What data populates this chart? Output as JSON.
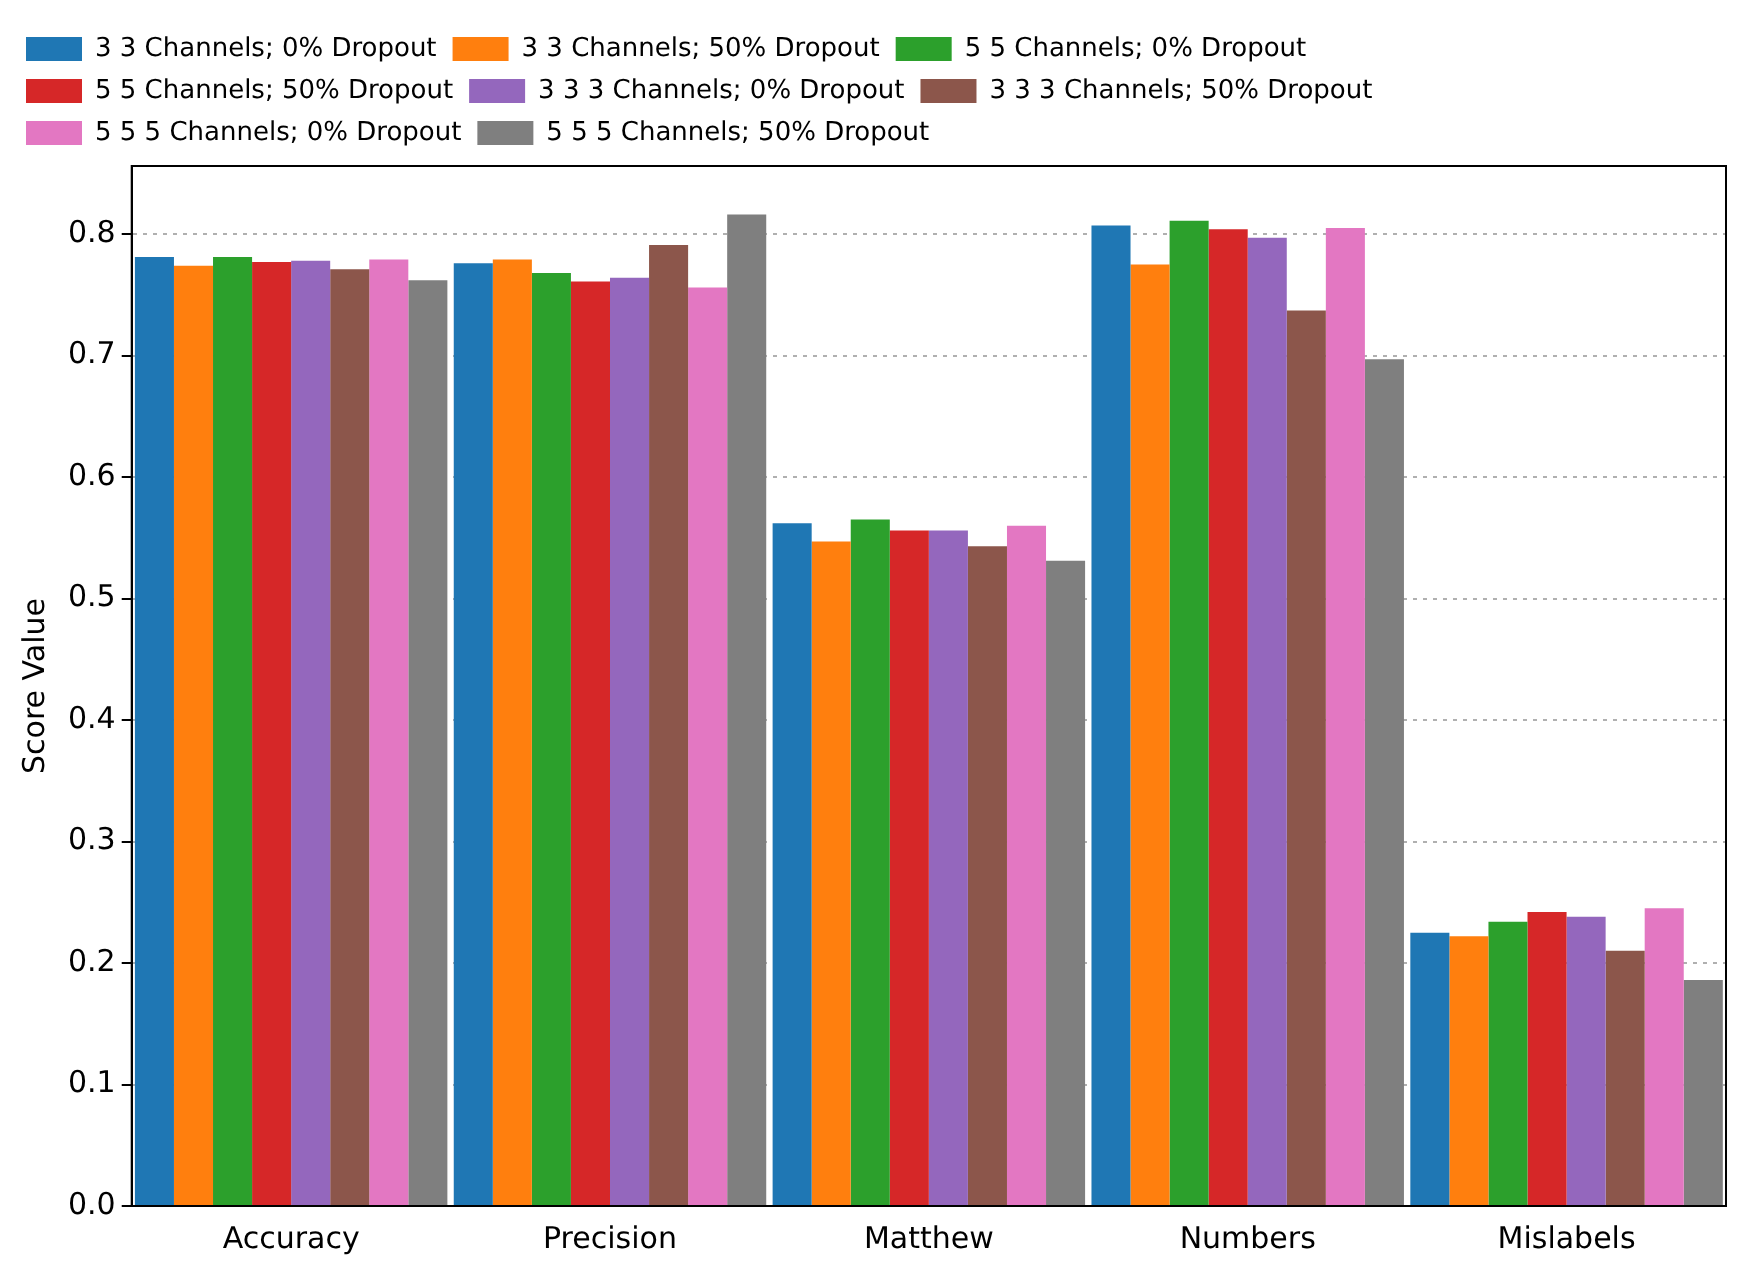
{
  "chart_data": {
    "type": "bar",
    "ylabel": "Score Value",
    "categories": [
      "Accuracy",
      "Precision",
      "Matthew",
      "Numbers",
      "Mislabels"
    ],
    "series": [
      {
        "name": "3 3 Channels; 0% Dropout",
        "color": "#1f77b4",
        "values": [
          0.781,
          0.776,
          0.562,
          0.807,
          0.225
        ]
      },
      {
        "name": "3 3 Channels; 50% Dropout",
        "color": "#ff7f0e",
        "values": [
          0.774,
          0.779,
          0.547,
          0.775,
          0.222
        ]
      },
      {
        "name": "5 5 Channels; 0% Dropout",
        "color": "#2ca02c",
        "values": [
          0.781,
          0.768,
          0.565,
          0.811,
          0.234
        ]
      },
      {
        "name": "5 5 Channels; 50% Dropout",
        "color": "#d62728",
        "values": [
          0.777,
          0.761,
          0.556,
          0.804,
          0.242
        ]
      },
      {
        "name": "3 3 3 Channels; 0% Dropout",
        "color": "#9467bd",
        "values": [
          0.778,
          0.764,
          0.556,
          0.797,
          0.238
        ]
      },
      {
        "name": "3 3 3 Channels; 50% Dropout",
        "color": "#8c564b",
        "values": [
          0.771,
          0.791,
          0.543,
          0.737,
          0.21
        ]
      },
      {
        "name": "5 5 5 Channels; 0% Dropout",
        "color": "#e377c2",
        "values": [
          0.779,
          0.756,
          0.56,
          0.805,
          0.245
        ]
      },
      {
        "name": "5 5 5 Channels; 50% Dropout",
        "color": "#7f7f7f",
        "values": [
          0.762,
          0.816,
          0.531,
          0.697,
          0.186
        ]
      }
    ],
    "ylim": [
      0,
      0.856
    ],
    "yticks": [
      {
        "value": 0,
        "label": "0.0"
      },
      0.1,
      0.2,
      0.3,
      0.4,
      0.5,
      0.6,
      0.7,
      0.8
    ],
    "grid": "y",
    "legend": "top"
  }
}
